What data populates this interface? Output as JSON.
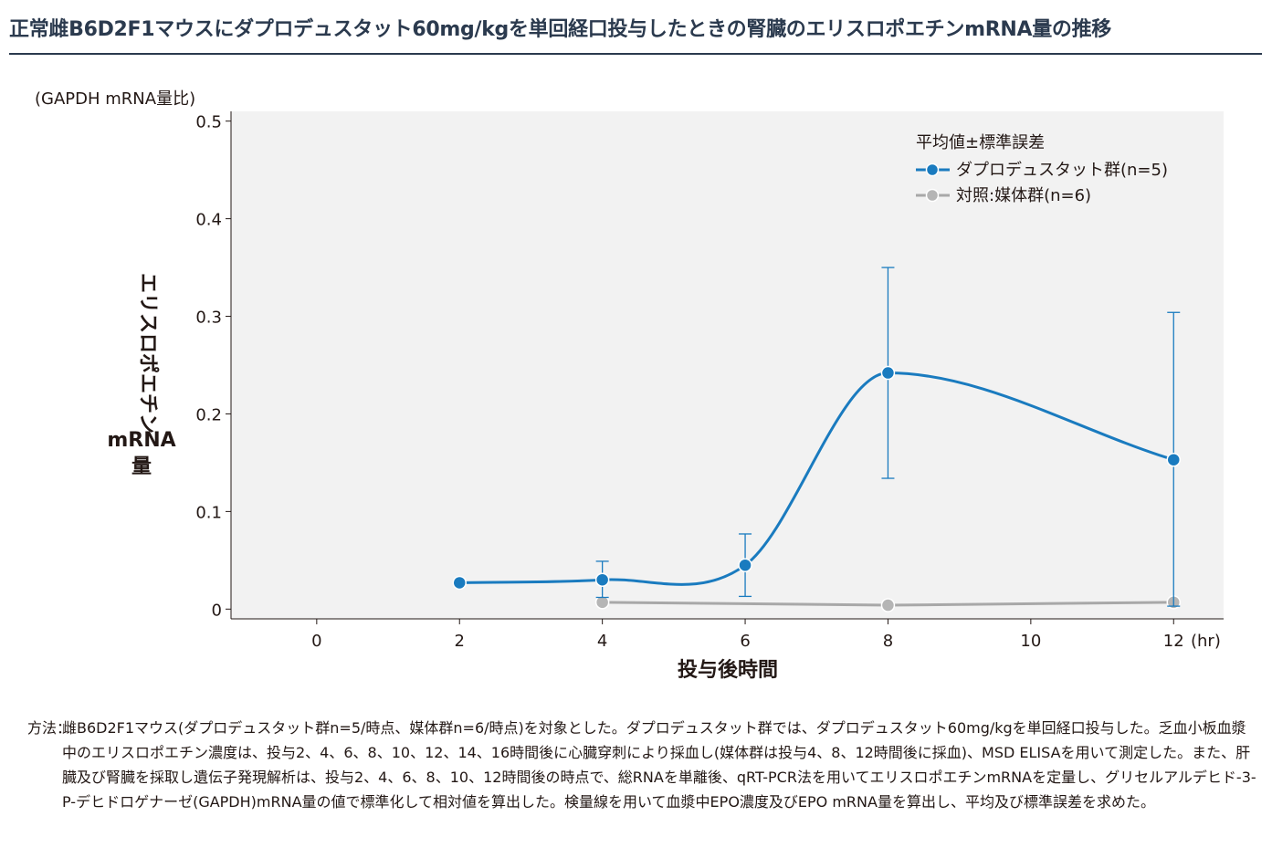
{
  "title": "正常雌B6D2F1マウスにダプロデュスタット60mg/kgを単回経口投与したときの腎臓のエリスロポエチンmRNA量の推移",
  "chart_data": {
    "type": "line",
    "ylabel_unit": "(GAPDH mRNA量比)",
    "ylabel_lines": [
      "エリスロポエチン",
      "mRNA",
      "量"
    ],
    "xlabel": "投与後時間",
    "x_unit": "(hr)",
    "xticks": [
      0,
      2,
      4,
      6,
      8,
      10,
      12
    ],
    "yticks": [
      0,
      0.1,
      0.2,
      0.3,
      0.4,
      0.5
    ],
    "ytick_labels": [
      "0",
      "0.1",
      "0.2",
      "0.3",
      "0.4",
      "0.5"
    ],
    "xlim": [
      -1.2,
      12.7
    ],
    "ylim": [
      -0.01,
      0.51
    ],
    "legend_title": "平均値±標準誤差",
    "legend_position": "top-right",
    "series": [
      {
        "name": "ダプロデュスタット群(n=5)",
        "color": "#1a7bbf",
        "x": [
          2,
          4,
          6,
          8,
          12
        ],
        "y": [
          0.027,
          0.03,
          0.045,
          0.242,
          0.153
        ],
        "err_low": [
          null,
          0.012,
          0.013,
          0.134,
          0.003
        ],
        "err_high": [
          null,
          0.049,
          0.077,
          0.35,
          0.304
        ]
      },
      {
        "name": "対照:媒体群(n=6)",
        "color": "#a8a8a8",
        "x": [
          4,
          8,
          12
        ],
        "y": [
          0.007,
          0.004,
          0.007
        ]
      }
    ]
  },
  "note": {
    "label": "方法：",
    "text": "雌B6D2F1マウス(ダプロデュスタット群n=5/時点、媒体群n=6/時点)を対象とした。ダプロデュスタット群では、ダプロデュスタット60mg/kgを単回経口投与した。乏血小板血漿中のエリスロポエチン濃度は、投与2、4、6、8、10、12、14、16時間後に心臓穿刺により採血し(媒体群は投与4、8、12時間後に採血)、MSD ELISAを用いて測定した。また、肝臓及び腎臓を採取し遺伝子発現解析は、投与2、4、6、8、10、12時間後の時点で、総RNAを単離後、qRT-PCR法を用いてエリスロポエチンmRNAを定量し、グリセルアルデヒド-3-P-デヒドロゲナーゼ(GAPDH)mRNA量の値で標準化して相対値を算出した。検量線を用いて血漿中EPO濃度及びEPO mRNA量を算出し、平均及び標準誤差を求めた。"
  }
}
